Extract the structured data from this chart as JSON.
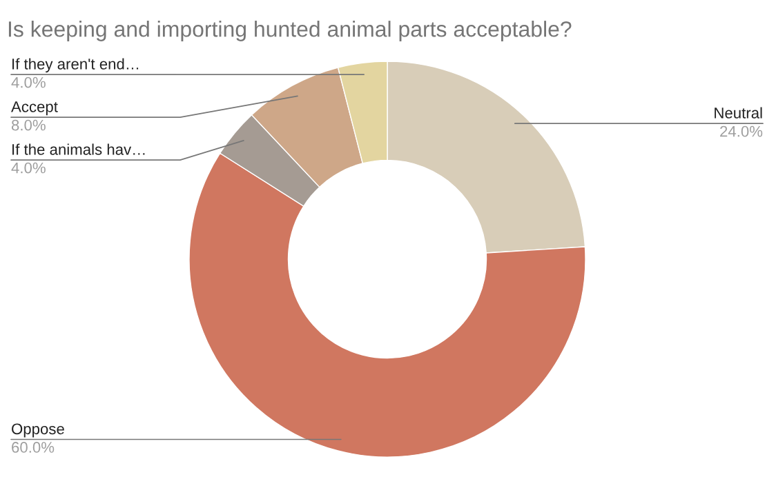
{
  "chart_data": {
    "type": "donut",
    "title": "Is keeping and importing hunted animal parts acceptable?",
    "categories": [
      "Neutral",
      "Oppose",
      "If the animals hav…",
      "Accept",
      "If they aren't end…"
    ],
    "values": [
      24,
      60,
      4,
      8,
      4
    ],
    "value_labels": [
      "24.0%",
      "60.0%",
      "4.0%",
      "8.0%",
      "4.0%"
    ],
    "colors": [
      "#d8cdb8",
      "#d07760",
      "#a59b93",
      "#cea788",
      "#e3d5a0"
    ],
    "legend": false
  }
}
